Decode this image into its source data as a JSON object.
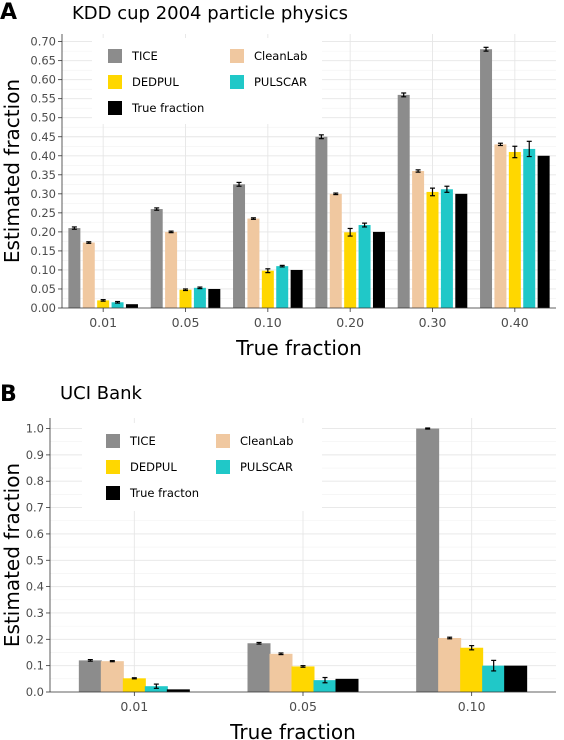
{
  "chart_data": [
    {
      "panel_letter": "A",
      "type": "bar",
      "title": "KDD cup 2004 particle physics",
      "xlabel": "True fraction",
      "ylabel": "Estimated fraction",
      "categories": [
        "0.01",
        "0.05",
        "0.10",
        "0.20",
        "0.30",
        "0.40"
      ],
      "ylim": [
        0,
        0.72
      ],
      "yticks": [
        "0.00",
        "0.05",
        "0.10",
        "0.15",
        "0.20",
        "0.25",
        "0.30",
        "0.35",
        "0.40",
        "0.45",
        "0.50",
        "0.55",
        "0.60",
        "0.65",
        "0.70"
      ],
      "grid": true,
      "legend_placement": "top-left",
      "error_bars": true,
      "series": [
        {
          "name": "TICE",
          "color": "#8c8c8c",
          "values": [
            0.21,
            0.26,
            0.325,
            0.45,
            0.56,
            0.68
          ],
          "errors": [
            0.003,
            0.003,
            0.005,
            0.005,
            0.005,
            0.005
          ]
        },
        {
          "name": "CleanLab",
          "color": "#f0c8a0",
          "values": [
            0.172,
            0.2,
            0.235,
            0.3,
            0.36,
            0.43
          ],
          "errors": [
            0.002,
            0.002,
            0.002,
            0.002,
            0.003,
            0.003
          ]
        },
        {
          "name": "DEDPUL",
          "color": "#ffd700",
          "values": [
            0.02,
            0.048,
            0.098,
            0.199,
            0.305,
            0.41
          ],
          "errors": [
            0.002,
            0.002,
            0.005,
            0.01,
            0.01,
            0.015
          ]
        },
        {
          "name": "PULSCAR",
          "color": "#20c8c8",
          "values": [
            0.015,
            0.053,
            0.11,
            0.218,
            0.312,
            0.418
          ],
          "errors": [
            0.002,
            0.002,
            0.002,
            0.005,
            0.008,
            0.02
          ]
        },
        {
          "name": "True fraction",
          "color": "#000000",
          "values": [
            0.01,
            0.05,
            0.1,
            0.2,
            0.3,
            0.4
          ],
          "errors": [
            0,
            0,
            0,
            0,
            0,
            0
          ]
        }
      ]
    },
    {
      "panel_letter": "B",
      "type": "bar",
      "title": "UCI Bank",
      "xlabel": "True fraction",
      "ylabel": "Estimated fraction",
      "categories": [
        "0.01",
        "0.05",
        "0.10"
      ],
      "ylim": [
        0,
        1.04
      ],
      "yticks": [
        "0.0",
        "0.1",
        "0.2",
        "0.3",
        "0.4",
        "0.5",
        "0.6",
        "0.7",
        "0.8",
        "0.9",
        "1.0"
      ],
      "grid": true,
      "legend_placement": "top-left",
      "error_bars": true,
      "series": [
        {
          "name": "TICE",
          "color": "#8c8c8c",
          "values": [
            0.12,
            0.185,
            1.0
          ],
          "errors": [
            0.003,
            0.003,
            0.002
          ]
        },
        {
          "name": "CleanLab",
          "color": "#f0c8a0",
          "values": [
            0.117,
            0.145,
            0.205
          ],
          "errors": [
            0.002,
            0.003,
            0.003
          ]
        },
        {
          "name": "DEDPUL",
          "color": "#ffd700",
          "values": [
            0.052,
            0.097,
            0.168
          ],
          "errors": [
            0.002,
            0.003,
            0.008
          ]
        },
        {
          "name": "PULSCAR",
          "color": "#20c8c8",
          "values": [
            0.022,
            0.045,
            0.1
          ],
          "errors": [
            0.008,
            0.01,
            0.02
          ]
        },
        {
          "name": "True fracton",
          "color": "#000000",
          "values": [
            0.01,
            0.05,
            0.1
          ],
          "errors": [
            0,
            0,
            0
          ]
        }
      ]
    }
  ]
}
